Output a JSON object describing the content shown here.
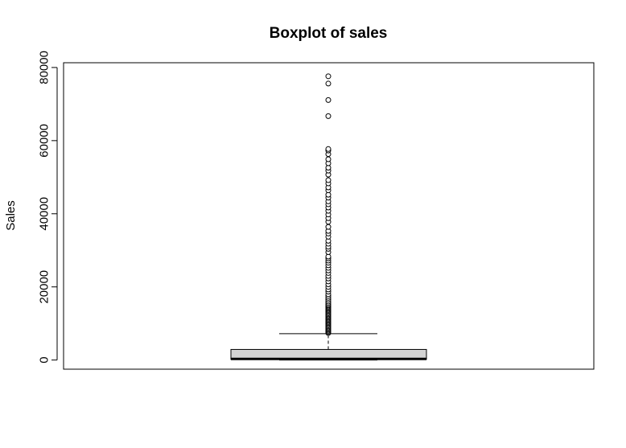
{
  "chart_data": {
    "type": "boxplot",
    "title": "Boxplot of sales",
    "xlabel": "",
    "ylabel": "Sales",
    "ylim": [
      -2500,
      81300
    ],
    "y_ticks": [
      0,
      20000,
      40000,
      60000,
      80000
    ],
    "y_tick_labels": [
      "0",
      "20000",
      "40000",
      "60000",
      "80000"
    ],
    "grid": false,
    "box": {
      "min": 0,
      "q1": 200,
      "median": 300,
      "q3": 2900,
      "whisker_high": 7200
    },
    "outliers": [
      7400,
      7700,
      8000,
      8300,
      8600,
      8900,
      9200,
      9500,
      9800,
      10100,
      10400,
      10700,
      11000,
      11300,
      11600,
      11900,
      12200,
      12500,
      12800,
      13100,
      13400,
      13700,
      14000,
      14300,
      14600,
      14900,
      15200,
      15600,
      16000,
      16500,
      17000,
      17500,
      18000,
      18700,
      19300,
      20000,
      20700,
      21500,
      22300,
      23000,
      23800,
      24500,
      25200,
      25900,
      26600,
      27200,
      27800,
      28300,
      29500,
      30400,
      31000,
      31800,
      32600,
      33700,
      34600,
      35300,
      36400,
      37800,
      38800,
      39800,
      40800,
      41700,
      42600,
      43400,
      44400,
      45200,
      46400,
      47200,
      48300,
      49200,
      50700,
      51800,
      52600,
      53800,
      54900,
      56300,
      57300,
      57700,
      66700,
      71100,
      75600,
      77600
    ]
  },
  "colors": {
    "box_fill": "#d3d3d3",
    "stroke": "#000000",
    "background": "#ffffff"
  }
}
